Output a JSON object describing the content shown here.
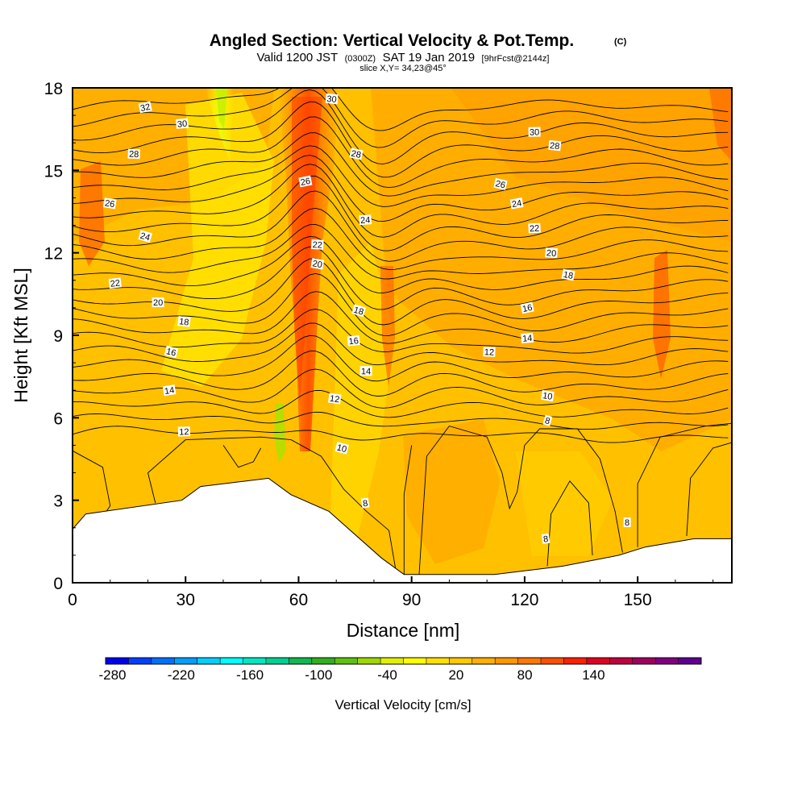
{
  "chart_data": {
    "type": "heatmap",
    "title": "Angled Section: Vertical Velocity & Pot.Temp.",
    "title_suffix": "(C)",
    "subtitle_parts": [
      "Valid 1200 JST",
      "(0300Z)",
      "SAT 19 Jan 2019",
      "[9hrFcst@2144z]"
    ],
    "subtitle2": "slice X,Y= 34,23@45°",
    "xlabel": "Distance [nm]",
    "ylabel": "Height [Kft MSL]",
    "xlim": [
      0,
      175
    ],
    "ylim": [
      0,
      18
    ],
    "xticks": [
      "0",
      "30",
      "60",
      "90",
      "120",
      "150"
    ],
    "yticks": [
      "0",
      "3",
      "6",
      "9",
      "12",
      "15",
      "18"
    ],
    "colorbar": {
      "label": "Vertical Velocity [cm/s]",
      "ticks": [
        "-280",
        "-220",
        "-160",
        "-100",
        "-40",
        "20",
        "80",
        "140"
      ],
      "colors": [
        "#0000f0",
        "#0040ff",
        "#0070ff",
        "#00a0ff",
        "#00d0ff",
        "#00ffff",
        "#00e8c0",
        "#00d090",
        "#10b850",
        "#30b020",
        "#60c010",
        "#a0d800",
        "#e0f000",
        "#ffff00",
        "#ffe000",
        "#ffc800",
        "#ffb000",
        "#ff9800",
        "#ff7800",
        "#ff5000",
        "#ff2000",
        "#e00020",
        "#c00040",
        "#a00060",
        "#800080",
        "#600090"
      ]
    },
    "terrain_kft": [
      [
        0,
        1.95
      ],
      [
        3.5,
        2.5
      ],
      [
        29,
        3.0
      ],
      [
        34,
        3.5
      ],
      [
        52,
        3.8
      ],
      [
        58,
        3.2
      ],
      [
        68,
        2.6
      ],
      [
        82,
        0.9
      ],
      [
        88,
        0.3
      ],
      [
        112,
        0.3
      ],
      [
        130,
        0.6
      ],
      [
        145,
        1.0
      ],
      [
        152,
        1.3
      ],
      [
        165,
        1.6
      ],
      [
        175,
        1.6
      ]
    ],
    "isotherm_labels": [
      {
        "text": "32",
        "x": 19.3,
        "y": 17.3
      },
      {
        "text": "30",
        "x": 29.1,
        "y": 16.7
      },
      {
        "text": "28",
        "x": 16.3,
        "y": 15.6
      },
      {
        "text": "26",
        "x": 9.9,
        "y": 13.8
      },
      {
        "text": "24",
        "x": 19.3,
        "y": 12.6
      },
      {
        "text": "22",
        "x": 11.3,
        "y": 10.9
      },
      {
        "text": "20",
        "x": 22.7,
        "y": 10.2
      },
      {
        "text": "18",
        "x": 29.6,
        "y": 9.5
      },
      {
        "text": "16",
        "x": 26.2,
        "y": 8.4
      },
      {
        "text": "14",
        "x": 25.7,
        "y": 7.0
      },
      {
        "text": "12",
        "x": 29.6,
        "y": 5.5
      },
      {
        "text": "30",
        "x": 68.8,
        "y": 17.6
      },
      {
        "text": "28",
        "x": 75.3,
        "y": 15.6
      },
      {
        "text": "26",
        "x": 61.8,
        "y": 14.6
      },
      {
        "text": "24",
        "x": 77.7,
        "y": 13.2
      },
      {
        "text": "22",
        "x": 65.0,
        "y": 12.3
      },
      {
        "text": "20",
        "x": 65.0,
        "y": 11.6
      },
      {
        "text": "18",
        "x": 76.0,
        "y": 9.9
      },
      {
        "text": "16",
        "x": 74.6,
        "y": 8.8
      },
      {
        "text": "14",
        "x": 77.9,
        "y": 7.7
      },
      {
        "text": "12",
        "x": 69.6,
        "y": 6.7
      },
      {
        "text": "10",
        "x": 71.5,
        "y": 4.9
      },
      {
        "text": "8",
        "x": 77.7,
        "y": 2.9
      },
      {
        "text": "30",
        "x": 122.6,
        "y": 16.4
      },
      {
        "text": "28",
        "x": 128.0,
        "y": 15.9
      },
      {
        "text": "26",
        "x": 113.6,
        "y": 14.5
      },
      {
        "text": "24",
        "x": 117.9,
        "y": 13.8
      },
      {
        "text": "22",
        "x": 122.6,
        "y": 12.9
      },
      {
        "text": "20",
        "x": 127.1,
        "y": 12.0
      },
      {
        "text": "18",
        "x": 131.6,
        "y": 11.2
      },
      {
        "text": "16",
        "x": 120.7,
        "y": 10.0
      },
      {
        "text": "14",
        "x": 120.7,
        "y": 8.9
      },
      {
        "text": "12",
        "x": 110.6,
        "y": 8.4
      },
      {
        "text": "10",
        "x": 126.1,
        "y": 6.8
      },
      {
        "text": "8",
        "x": 126.1,
        "y": 5.9
      },
      {
        "text": "8",
        "x": 125.6,
        "y": 1.6
      },
      {
        "text": "8",
        "x": 147.2,
        "y": 2.2
      }
    ]
  }
}
